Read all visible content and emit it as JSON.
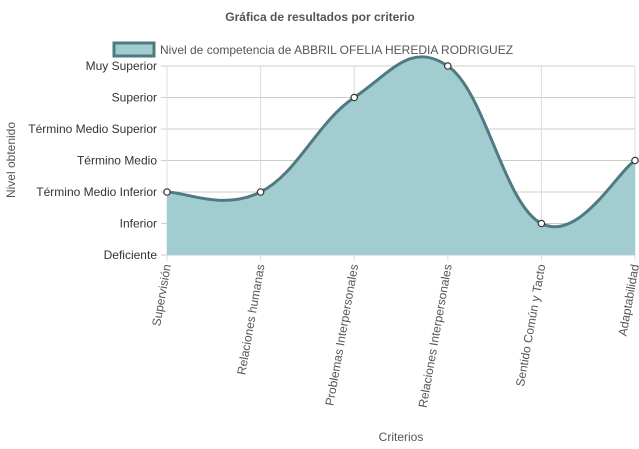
{
  "chart_data": {
    "type": "area",
    "title": "Gráfica de resultados por criterio",
    "xlabel": "Criterios",
    "ylabel": "Nivel obtenido",
    "categories": [
      "Supervisión",
      "Relaciones humanas",
      "Problemas Interpersonales",
      "Relaciones Interpersonales",
      "Sentido Común y Tacto",
      "Adaptabilidad"
    ],
    "y_levels": [
      "Deficiente",
      "Inferior",
      "Término Medio Inferior",
      "Término Medio",
      "Término Medio Superior",
      "Superior",
      "Muy Superior"
    ],
    "ylim": [
      0,
      6
    ],
    "series": [
      {
        "name": "Nivel de competencia de ABBRIL OFELIA HEREDIA RODRIGUEZ",
        "values": [
          2,
          2,
          5,
          6,
          1,
          3
        ],
        "fill_color": "#a2cdd0",
        "line_color": "#4e7a80"
      }
    ],
    "grid": true,
    "legend_position": "top"
  }
}
